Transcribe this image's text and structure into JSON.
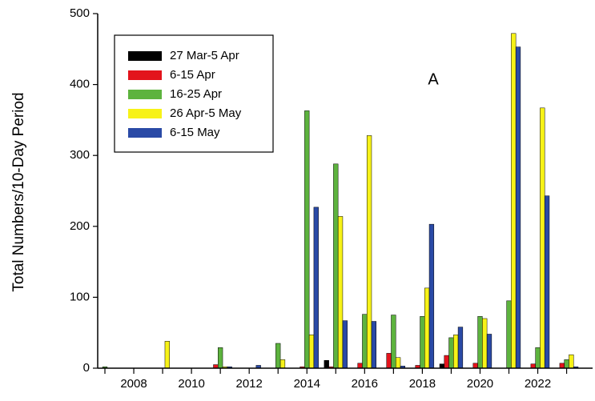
{
  "chart_data": {
    "type": "bar",
    "ylabel": "Total Numbers/10-Day Period",
    "annotation": "A",
    "x": [
      2007,
      2008,
      2009,
      2010,
      2011,
      2012,
      2013,
      2014,
      2015,
      2016,
      2017,
      2018,
      2019,
      2020,
      2021,
      2022,
      2023
    ],
    "series": [
      {
        "name": "27 Mar-5 Apr",
        "color": "#000000",
        "values": [
          0,
          0,
          0,
          0,
          0,
          0,
          0,
          0,
          11,
          0,
          0,
          0,
          6,
          0,
          0,
          0,
          0
        ]
      },
      {
        "name": "6-15 Apr",
        "color": "#e3141c",
        "values": [
          0,
          0,
          0,
          0,
          5,
          0,
          0,
          2,
          2,
          7,
          21,
          4,
          18,
          7,
          0,
          6,
          7
        ]
      },
      {
        "name": "16-25 Apr",
        "color": "#5db33e",
        "values": [
          2,
          0,
          0,
          0,
          29,
          0,
          35,
          363,
          288,
          76,
          75,
          73,
          43,
          73,
          95,
          29,
          12
        ]
      },
      {
        "name": "26 Apr-5 May",
        "color": "#f7f218",
        "values": [
          0,
          0,
          38,
          0,
          2,
          0,
          12,
          47,
          214,
          328,
          15,
          113,
          47,
          70,
          472,
          367,
          19
        ]
      },
      {
        "name": "6-15 May",
        "color": "#2a4aa6",
        "values": [
          0,
          0,
          0,
          0,
          2,
          4,
          0,
          227,
          67,
          66,
          3,
          203,
          58,
          48,
          453,
          243,
          2
        ]
      }
    ],
    "xlim": [
      2006.75,
      2023.9
    ],
    "xticks": [
      2008,
      2010,
      2012,
      2014,
      2016,
      2018,
      2020,
      2022
    ],
    "xminor_ticks": [
      2007,
      2009,
      2011,
      2013,
      2015,
      2017,
      2019,
      2021,
      2023
    ],
    "ylim": [
      0,
      500
    ],
    "yticks": [
      0,
      100,
      200,
      300,
      400,
      500
    ],
    "legend": "upper left"
  }
}
